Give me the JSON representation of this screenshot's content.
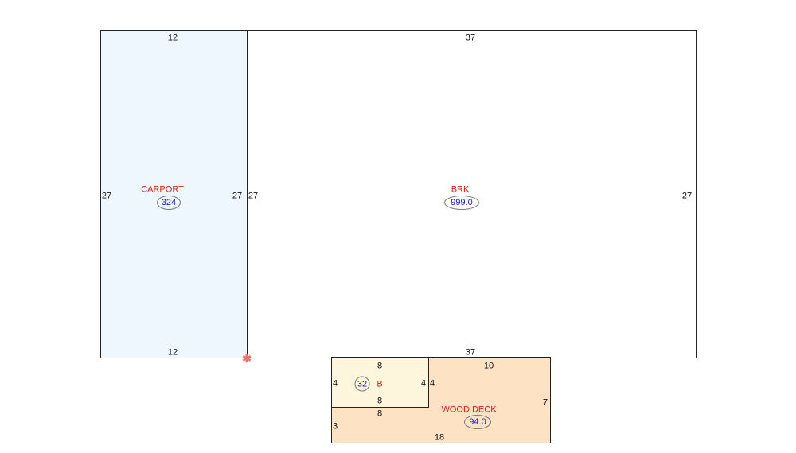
{
  "colors": {
    "carport_fill": "#eef6fe",
    "brk_fill": "#ffffff",
    "b_fill": "#fdf6dc",
    "deck_fill": "#fde3c4",
    "label": "#e01b1b",
    "area_value": "#1a1acc"
  },
  "areas": {
    "carport": {
      "label": "CARPORT",
      "area": "324",
      "top": "12",
      "bottom": "12",
      "left": "27",
      "right": "27"
    },
    "brk": {
      "label": "BRK",
      "area": "999.0",
      "top": "37",
      "bottom": "37",
      "left": "27",
      "right": "27"
    },
    "b": {
      "label": "B",
      "area": "32",
      "top": "8",
      "bottom": "8",
      "left": "4",
      "right": "4"
    },
    "wood_deck": {
      "label": "WOOD DECK",
      "area": "94.0",
      "top": "10",
      "right": "7",
      "bottom": "18",
      "left": "3",
      "inner_left": "4",
      "inner_top": "8"
    }
  },
  "marker_icon": "red-x-marker"
}
